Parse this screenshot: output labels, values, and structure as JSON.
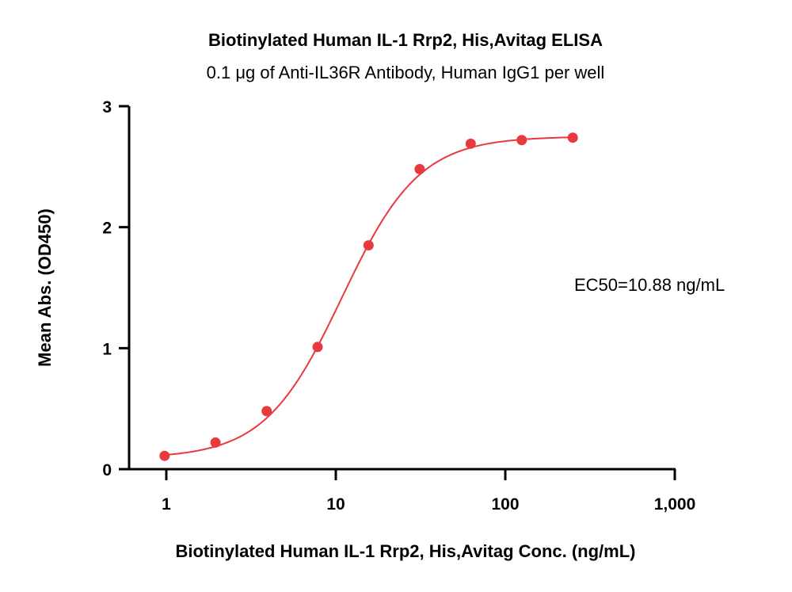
{
  "chart_data": {
    "type": "scatter",
    "title": "Biotinylated Human  IL-1 Rrp2, His,Avitag ELISA",
    "subtitle": "0.1 μg of Anti-IL36R Antibody, Human IgG1 per well",
    "xlabel": "Biotinylated Human  IL-1 Rrp2, His,Avitag Conc. (ng/mL)",
    "ylabel": "Mean Abs. (OD450)",
    "xscale": "log",
    "xlim": [
      0.67,
      1000
    ],
    "ylim": [
      0,
      3
    ],
    "xticks": [
      1,
      10,
      100,
      1000
    ],
    "xtick_labels": [
      "1",
      "10",
      "100",
      "1,000"
    ],
    "yticks": [
      0,
      1,
      2,
      3
    ],
    "ytick_labels": [
      "0",
      "1",
      "2",
      "3"
    ],
    "grid": false,
    "legend": "none",
    "color": "#e8393f",
    "series": [
      {
        "x": [
          0.977,
          1.95,
          3.91,
          7.81,
          15.6,
          31.25,
          62.5,
          125,
          250
        ],
        "y": [
          0.11,
          0.22,
          0.48,
          1.01,
          1.85,
          2.48,
          2.69,
          2.72,
          2.74
        ]
      }
    ],
    "fit": {
      "model": "4PL",
      "bottom": 0.09,
      "top": 2.75,
      "ec50": 10.88,
      "hill": 1.9
    },
    "annotations": [
      "EC50=10.88 ng/mL"
    ]
  }
}
